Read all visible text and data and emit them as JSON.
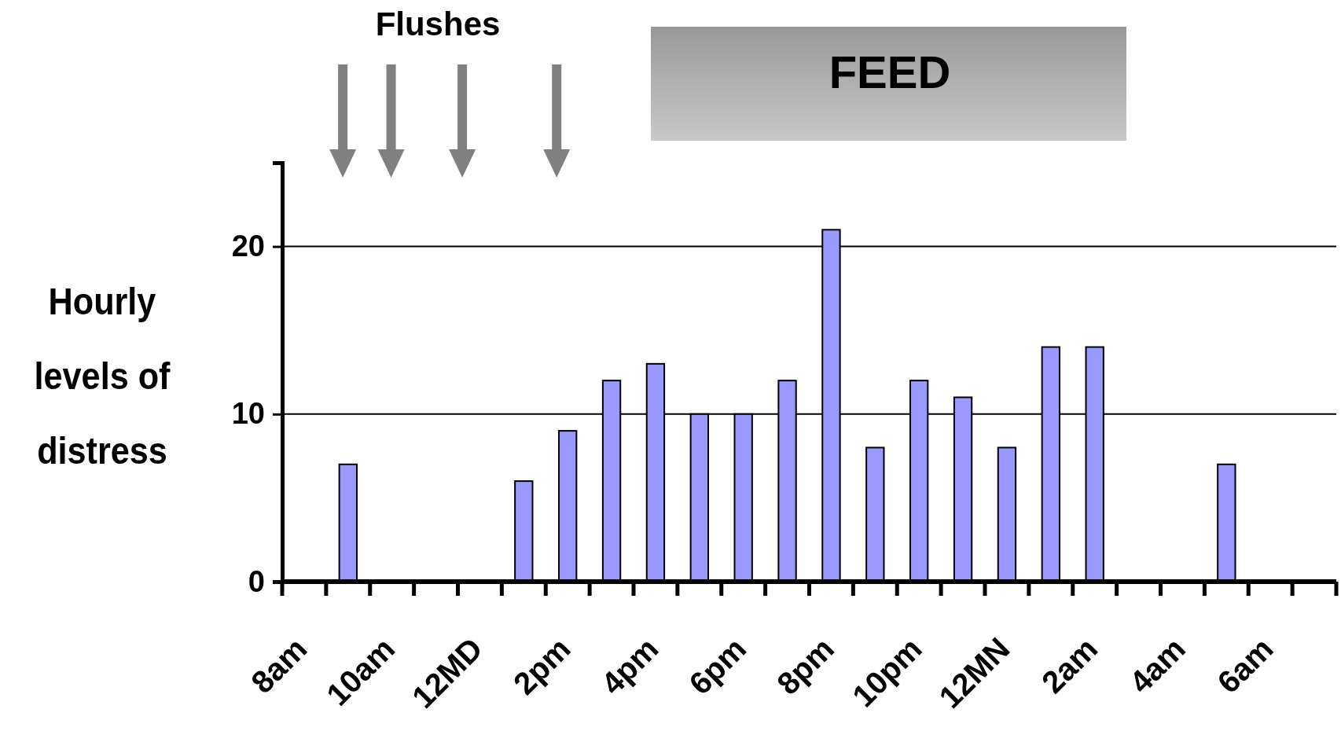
{
  "chart_data": {
    "type": "bar",
    "ylabel": "Hourly levels of distress",
    "categories": [
      "8am",
      null,
      "10am",
      null,
      "12MD",
      null,
      "2pm",
      null,
      "4pm",
      null,
      "6pm",
      null,
      "8pm",
      null,
      "10pm",
      null,
      "12MN",
      null,
      "2am",
      null,
      "4am",
      null,
      "6am",
      null
    ],
    "values": [
      null,
      7,
      null,
      null,
      null,
      6,
      9,
      12,
      13,
      10,
      10,
      12,
      21,
      8,
      12,
      11,
      8,
      14,
      14,
      null,
      null,
      7,
      null,
      null
    ],
    "color": "#9999ff",
    "ylim": [
      0,
      25
    ],
    "yticks": [
      0,
      10,
      20
    ],
    "grid": "y",
    "annotations": [
      "Flushes",
      "FEED"
    ]
  }
}
